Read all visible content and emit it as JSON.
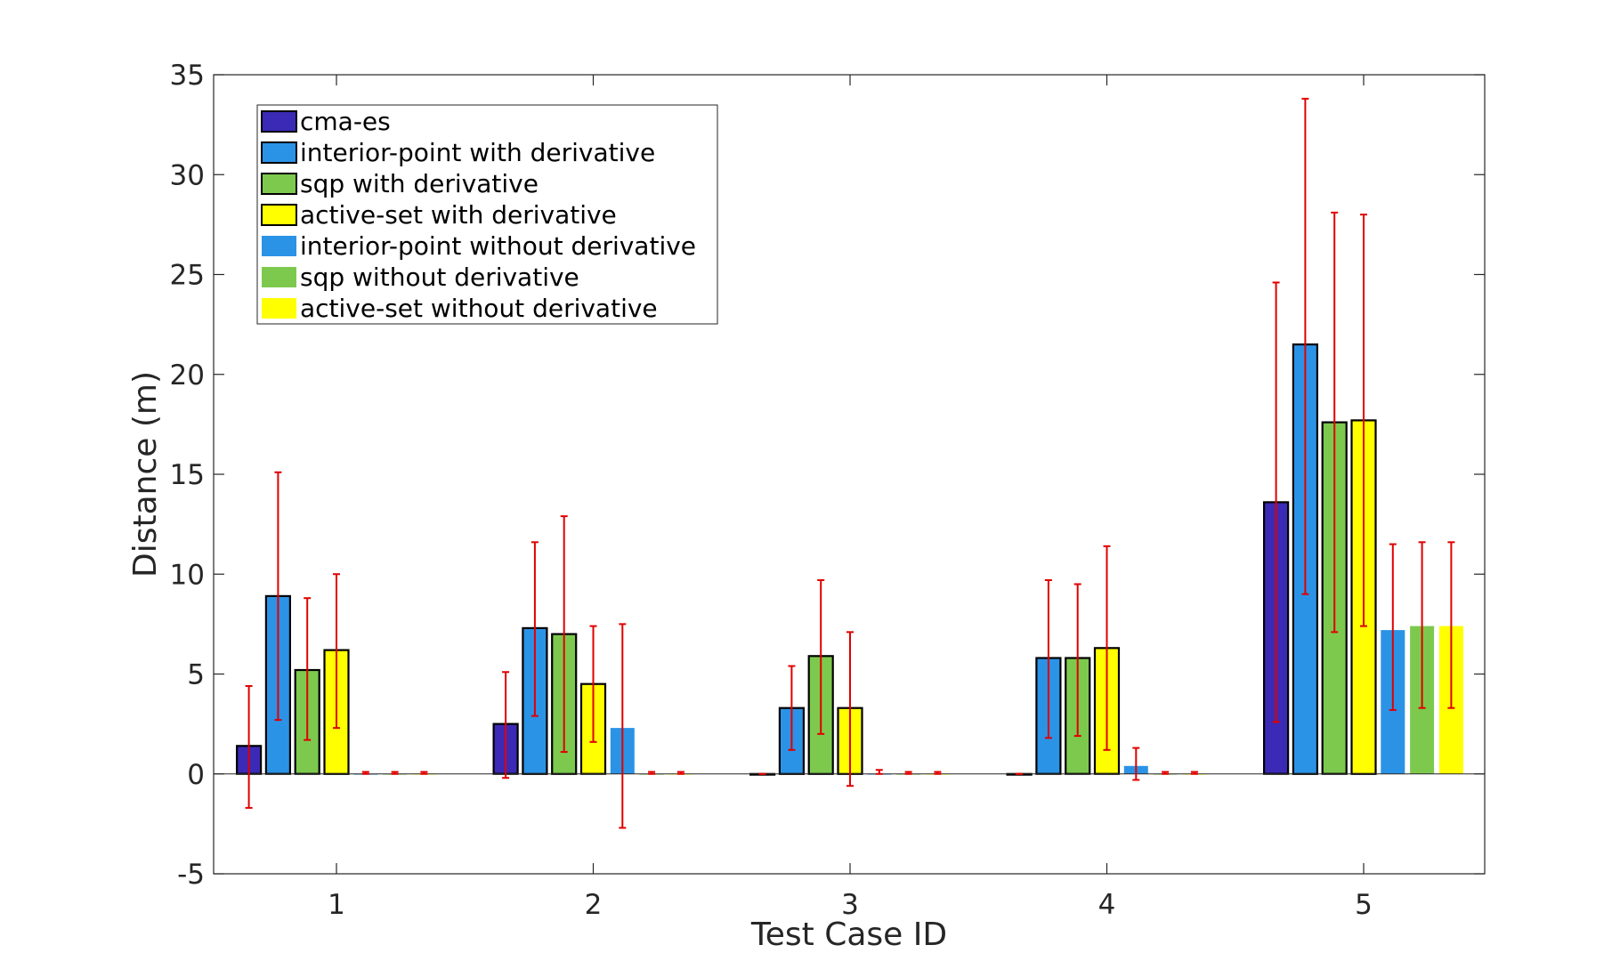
{
  "chart_data": {
    "type": "bar",
    "xlabel": "Test Case ID",
    "ylabel": "Distance (m)",
    "ylim": [
      -5,
      35
    ],
    "yticks": [
      -5,
      0,
      5,
      10,
      15,
      20,
      25,
      30,
      35
    ],
    "categories": [
      "1",
      "2",
      "3",
      "4",
      "5"
    ],
    "legend_position": "top-left",
    "grid": false,
    "series": [
      {
        "name": "cma-es",
        "color": "#3b2ab5",
        "outlined": true,
        "values": [
          1.4,
          2.5,
          0.0,
          0.0,
          13.6
        ],
        "err_low": [
          -1.7,
          -0.2,
          0.0,
          0.0,
          2.6
        ],
        "err_high": [
          4.4,
          5.1,
          0.0,
          0.0,
          24.6
        ]
      },
      {
        "name": "interior-point with derivative",
        "color": "#2b93e6",
        "outlined": true,
        "values": [
          8.9,
          7.3,
          3.3,
          5.8,
          21.5
        ],
        "err_low": [
          2.7,
          2.9,
          1.2,
          1.8,
          9.0
        ],
        "err_high": [
          15.1,
          11.6,
          5.4,
          9.7,
          33.8
        ]
      },
      {
        "name": "sqp with derivative",
        "color": "#7dc94e",
        "outlined": true,
        "values": [
          5.2,
          7.0,
          5.9,
          5.8,
          17.6
        ],
        "err_low": [
          1.7,
          1.1,
          2.0,
          1.9,
          7.1
        ],
        "err_high": [
          8.8,
          12.9,
          9.7,
          9.5,
          28.1
        ]
      },
      {
        "name": "active-set with derivative",
        "color": "#ffff00",
        "outlined": true,
        "values": [
          6.2,
          4.5,
          3.3,
          6.3,
          17.7
        ],
        "err_low": [
          2.3,
          1.6,
          -0.6,
          1.2,
          7.4
        ],
        "err_high": [
          10.0,
          7.4,
          7.1,
          11.4,
          28.0
        ]
      },
      {
        "name": "interior-point without derivative",
        "color": "#2b93e6",
        "outlined": false,
        "values": [
          0.0,
          2.3,
          0.0,
          0.4,
          7.2
        ],
        "err_low": [
          0.0,
          -2.7,
          0.0,
          -0.3,
          3.2
        ],
        "err_high": [
          0.1,
          7.5,
          0.2,
          1.3,
          11.5
        ]
      },
      {
        "name": "sqp without derivative",
        "color": "#7dc94e",
        "outlined": false,
        "values": [
          0.0,
          0.0,
          0.0,
          0.0,
          7.4
        ],
        "err_low": [
          0.0,
          0.0,
          0.0,
          0.0,
          3.3
        ],
        "err_high": [
          0.1,
          0.1,
          0.1,
          0.1,
          11.6
        ]
      },
      {
        "name": "active-set without derivative",
        "color": "#ffff00",
        "outlined": false,
        "values": [
          0.0,
          0.0,
          0.0,
          0.0,
          7.4
        ],
        "err_low": [
          0.0,
          0.0,
          0.0,
          0.0,
          3.3
        ],
        "err_high": [
          0.1,
          0.1,
          0.1,
          0.1,
          11.6
        ]
      }
    ],
    "error_bar_color": "#e00000"
  }
}
